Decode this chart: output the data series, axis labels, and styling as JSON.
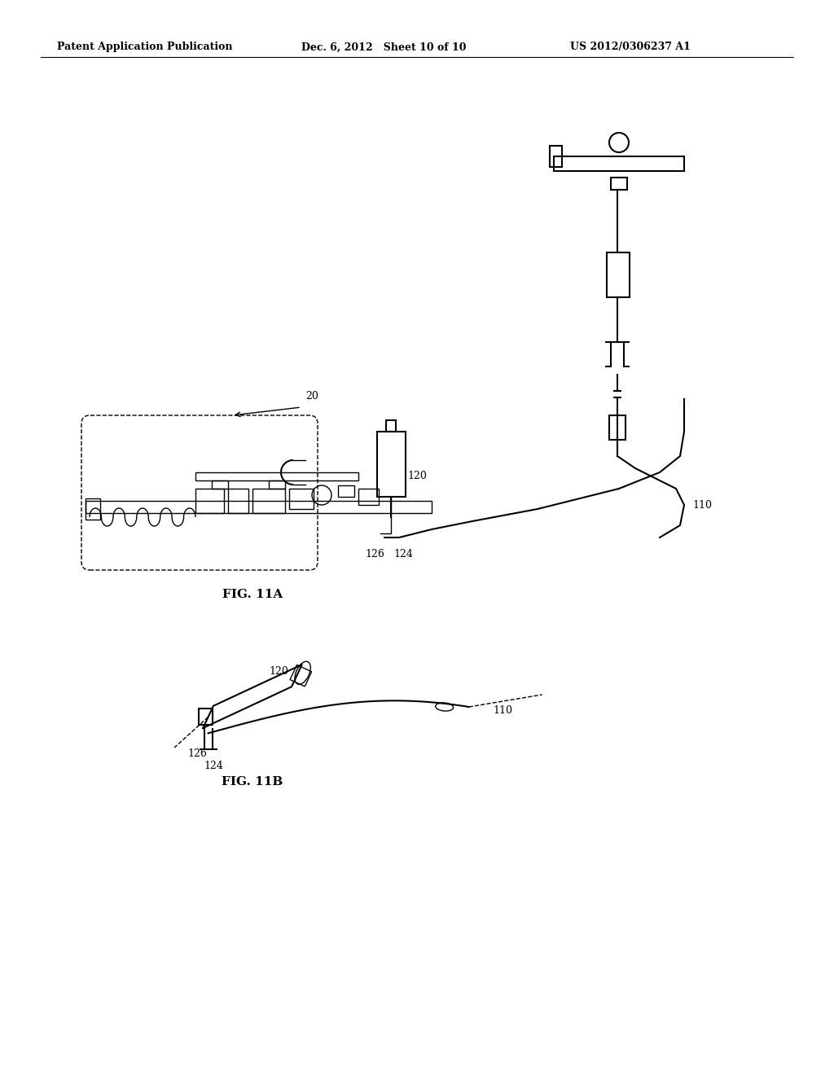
{
  "bg_color": "#ffffff",
  "line_color": "#000000",
  "header_left": "Patent Application Publication",
  "header_mid": "Dec. 6, 2012   Sheet 10 of 10",
  "header_right": "US 2012/0306237 A1",
  "fig_label_a": "FIG. 11A",
  "fig_label_b": "FIG. 11B",
  "label_20": "20",
  "label_110": "110",
  "label_120": "120",
  "label_124": "124",
  "label_126": "126"
}
